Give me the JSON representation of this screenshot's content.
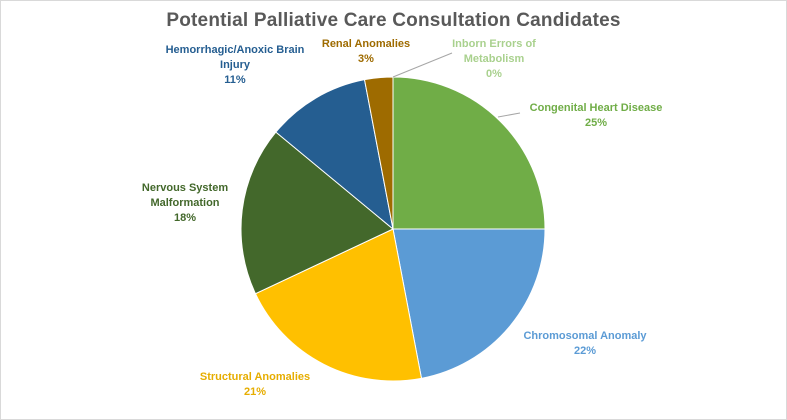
{
  "chart_data": {
    "type": "pie",
    "title": "Potential Palliative Care Consultation Candidates",
    "start_angle_deg": 0,
    "direction": "clockwise",
    "slices": [
      {
        "name": "Congenital Heart Disease",
        "value": 25,
        "label_lines": [
          "Congenital Heart Disease"
        ],
        "pct_label": "25%",
        "color": "#70ad47"
      },
      {
        "name": "Chromosomal Anomaly",
        "value": 22,
        "label_lines": [
          "Chromosomal Anomaly"
        ],
        "pct_label": "22%",
        "color": "#5b9bd5"
      },
      {
        "name": "Structural Anomalies",
        "value": 21,
        "label_lines": [
          "Structural Anomalies"
        ],
        "pct_label": "21%",
        "color": "#ffc000"
      },
      {
        "name": "Nervous System Malformation",
        "value": 18,
        "label_lines": [
          "Nervous System",
          "Malformation"
        ],
        "pct_label": "18%",
        "color": "#43682b"
      },
      {
        "name": "Hemorrhagic/Anoxic Brain Injury",
        "value": 11,
        "label_lines": [
          "Hemorrhagic/Anoxic Brain",
          "Injury"
        ],
        "pct_label": "11%",
        "color": "#255e91"
      },
      {
        "name": "Renal Anomalies",
        "value": 3,
        "label_lines": [
          "Renal Anomalies"
        ],
        "pct_label": "3%",
        "color": "#9e6b00"
      },
      {
        "name": "Inborn Errors of Metabolism",
        "value": 0,
        "label_lines": [
          "Inborn Errors of",
          "Metabolism"
        ],
        "pct_label": "0%",
        "color": "#a9d18e"
      }
    ],
    "label_colors": {
      "Congenital Heart Disease": "#70ad47",
      "Chromosomal Anomaly": "#5b9bd5",
      "Structural Anomalies": "#e6ad00",
      "Nervous System Malformation": "#43682b",
      "Hemorrhagic/Anoxic Brain Injury": "#255e91",
      "Renal Anomalies": "#9e6b00",
      "Inborn Errors of Metabolism": "#a9d18e"
    },
    "leader_line_color": "#a6a6a6"
  }
}
